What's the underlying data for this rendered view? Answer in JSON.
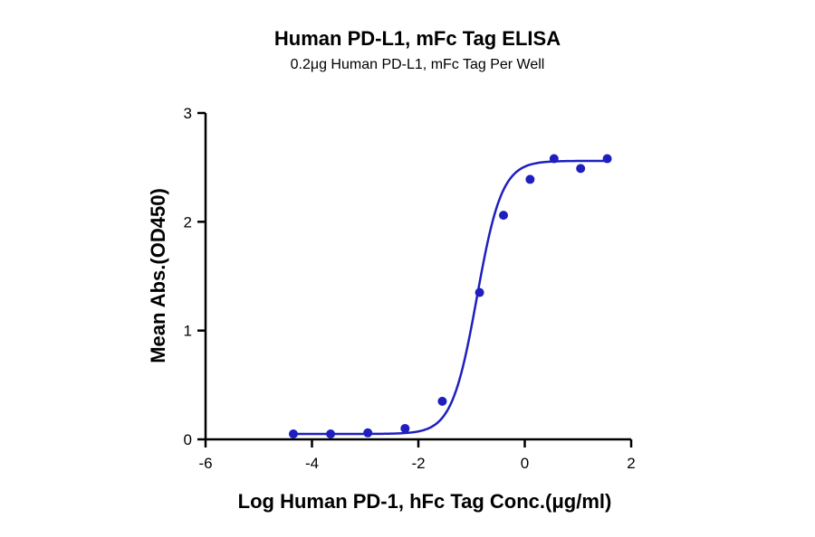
{
  "chart_data": {
    "type": "scatter",
    "title": "Human PD-L1, mFc Tag ELISA",
    "subtitle": "0.2μg Human PD-L1, mFc Tag Per Well",
    "xlabel": "Log Human PD-1, hFc Tag Conc.(μg/ml)",
    "ylabel": "Mean Abs.(OD450)",
    "xlim": [
      -6,
      2
    ],
    "ylim": [
      0,
      3
    ],
    "xticks": [
      -6,
      -4,
      -2,
      0,
      2
    ],
    "yticks": [
      0,
      1,
      2,
      3
    ],
    "xtick_labels": [
      "-6",
      "-4",
      "-2",
      "0",
      "2"
    ],
    "ytick_labels": [
      "0",
      "1",
      "2",
      "3"
    ],
    "grid": false,
    "point_color": "#1f1fbf",
    "curve_color": "#1f1fbf",
    "series": [
      {
        "x": [
          -4.35,
          -3.65,
          -2.95,
          -2.25,
          -1.55,
          -0.85,
          -0.4,
          0.1,
          0.55,
          1.05,
          1.55
        ],
        "y": [
          0.05,
          0.05,
          0.06,
          0.1,
          0.35,
          1.35,
          2.06,
          2.39,
          2.58,
          2.49,
          2.58
        ]
      }
    ],
    "fit": {
      "type": "4PL",
      "bottom": 0.05,
      "top": 2.56,
      "log_ec50": -0.9,
      "hill": 1.85,
      "x_range": [
        -4.35,
        1.55
      ]
    }
  }
}
